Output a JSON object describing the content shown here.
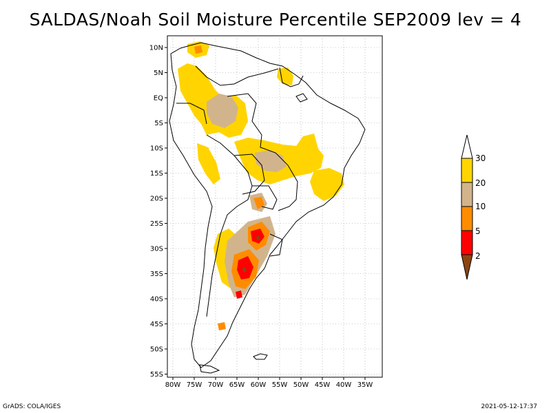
{
  "title": "SALDAS/Noah Soil Moisture Percentile SEP2009 lev = 4",
  "map": {
    "lat_labels": [
      "10N",
      "5N",
      "EQ",
      "5S",
      "10S",
      "15S",
      "20S",
      "25S",
      "30S",
      "35S",
      "40S",
      "45S",
      "50S",
      "55S"
    ],
    "lon_labels": [
      "80W",
      "75W",
      "70W",
      "65W",
      "60W",
      "55W",
      "50W",
      "45W",
      "40W",
      "35W"
    ],
    "lon_range": [
      -80,
      -30
    ],
    "lat_range": [
      -56,
      12
    ]
  },
  "colorbar": {
    "labels": [
      "30",
      "20",
      "10",
      "5",
      "2"
    ],
    "colors": {
      "p30": "#ffffff",
      "p20_30": "#ffd400",
      "p10_20": "#d2b48c",
      "p5_10": "#ff8c00",
      "p2_5": "#ff0000",
      "p0_2": "#8b4513"
    }
  },
  "footer": {
    "left": "GrADS: COLA/IGES",
    "right": "2021-05-12-17:37"
  }
}
